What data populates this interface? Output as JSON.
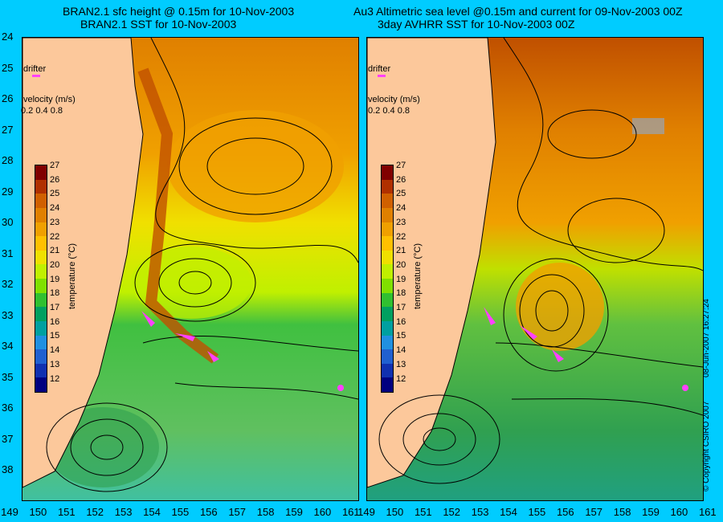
{
  "titles": {
    "left_line1": "BRAN2.1 sfc height @ 0.15m for 10-Nov-2003",
    "left_line2": "BRAN2.1 SST for 10-Nov-2003",
    "right_line1": "Au3 Altimetric sea level  @0.15m and current for 09-Nov-2003 00Z",
    "right_line2": "3day AVHRR SST for 10-Nov-2003 00Z"
  },
  "y_ticks": [
    "24",
    "25",
    "26",
    "27",
    "28",
    "29",
    "30",
    "31",
    "32",
    "33",
    "34",
    "35",
    "36",
    "37",
    "38"
  ],
  "x_ticks": [
    "149",
    "150",
    "151",
    "152",
    "153",
    "154",
    "155",
    "156",
    "157",
    "158",
    "159",
    "160",
    "161"
  ],
  "legend": {
    "drifter": "drifter",
    "velocity": "velocity (m/s)",
    "velocity_values": "0.2 0.4 0.8"
  },
  "colorbar": {
    "ticks": [
      "27",
      "26",
      "25",
      "24",
      "23",
      "22",
      "21",
      "20",
      "19",
      "18",
      "17",
      "16",
      "15",
      "14",
      "13",
      "12"
    ],
    "label": "temperature (°C)",
    "colors": [
      "#800000",
      "#b03000",
      "#d06000",
      "#e08000",
      "#f0a000",
      "#ffc000",
      "#f0e000",
      "#c0f000",
      "#80e000",
      "#30c030",
      "#00a060",
      "#00a0a0",
      "#2090e0",
      "#2060d0",
      "#1030b0",
      "#000080"
    ]
  },
  "credits": {
    "copyright": "© Copyright CSIRO 2007",
    "date": "08-Jun-2007 16:27:24"
  }
}
